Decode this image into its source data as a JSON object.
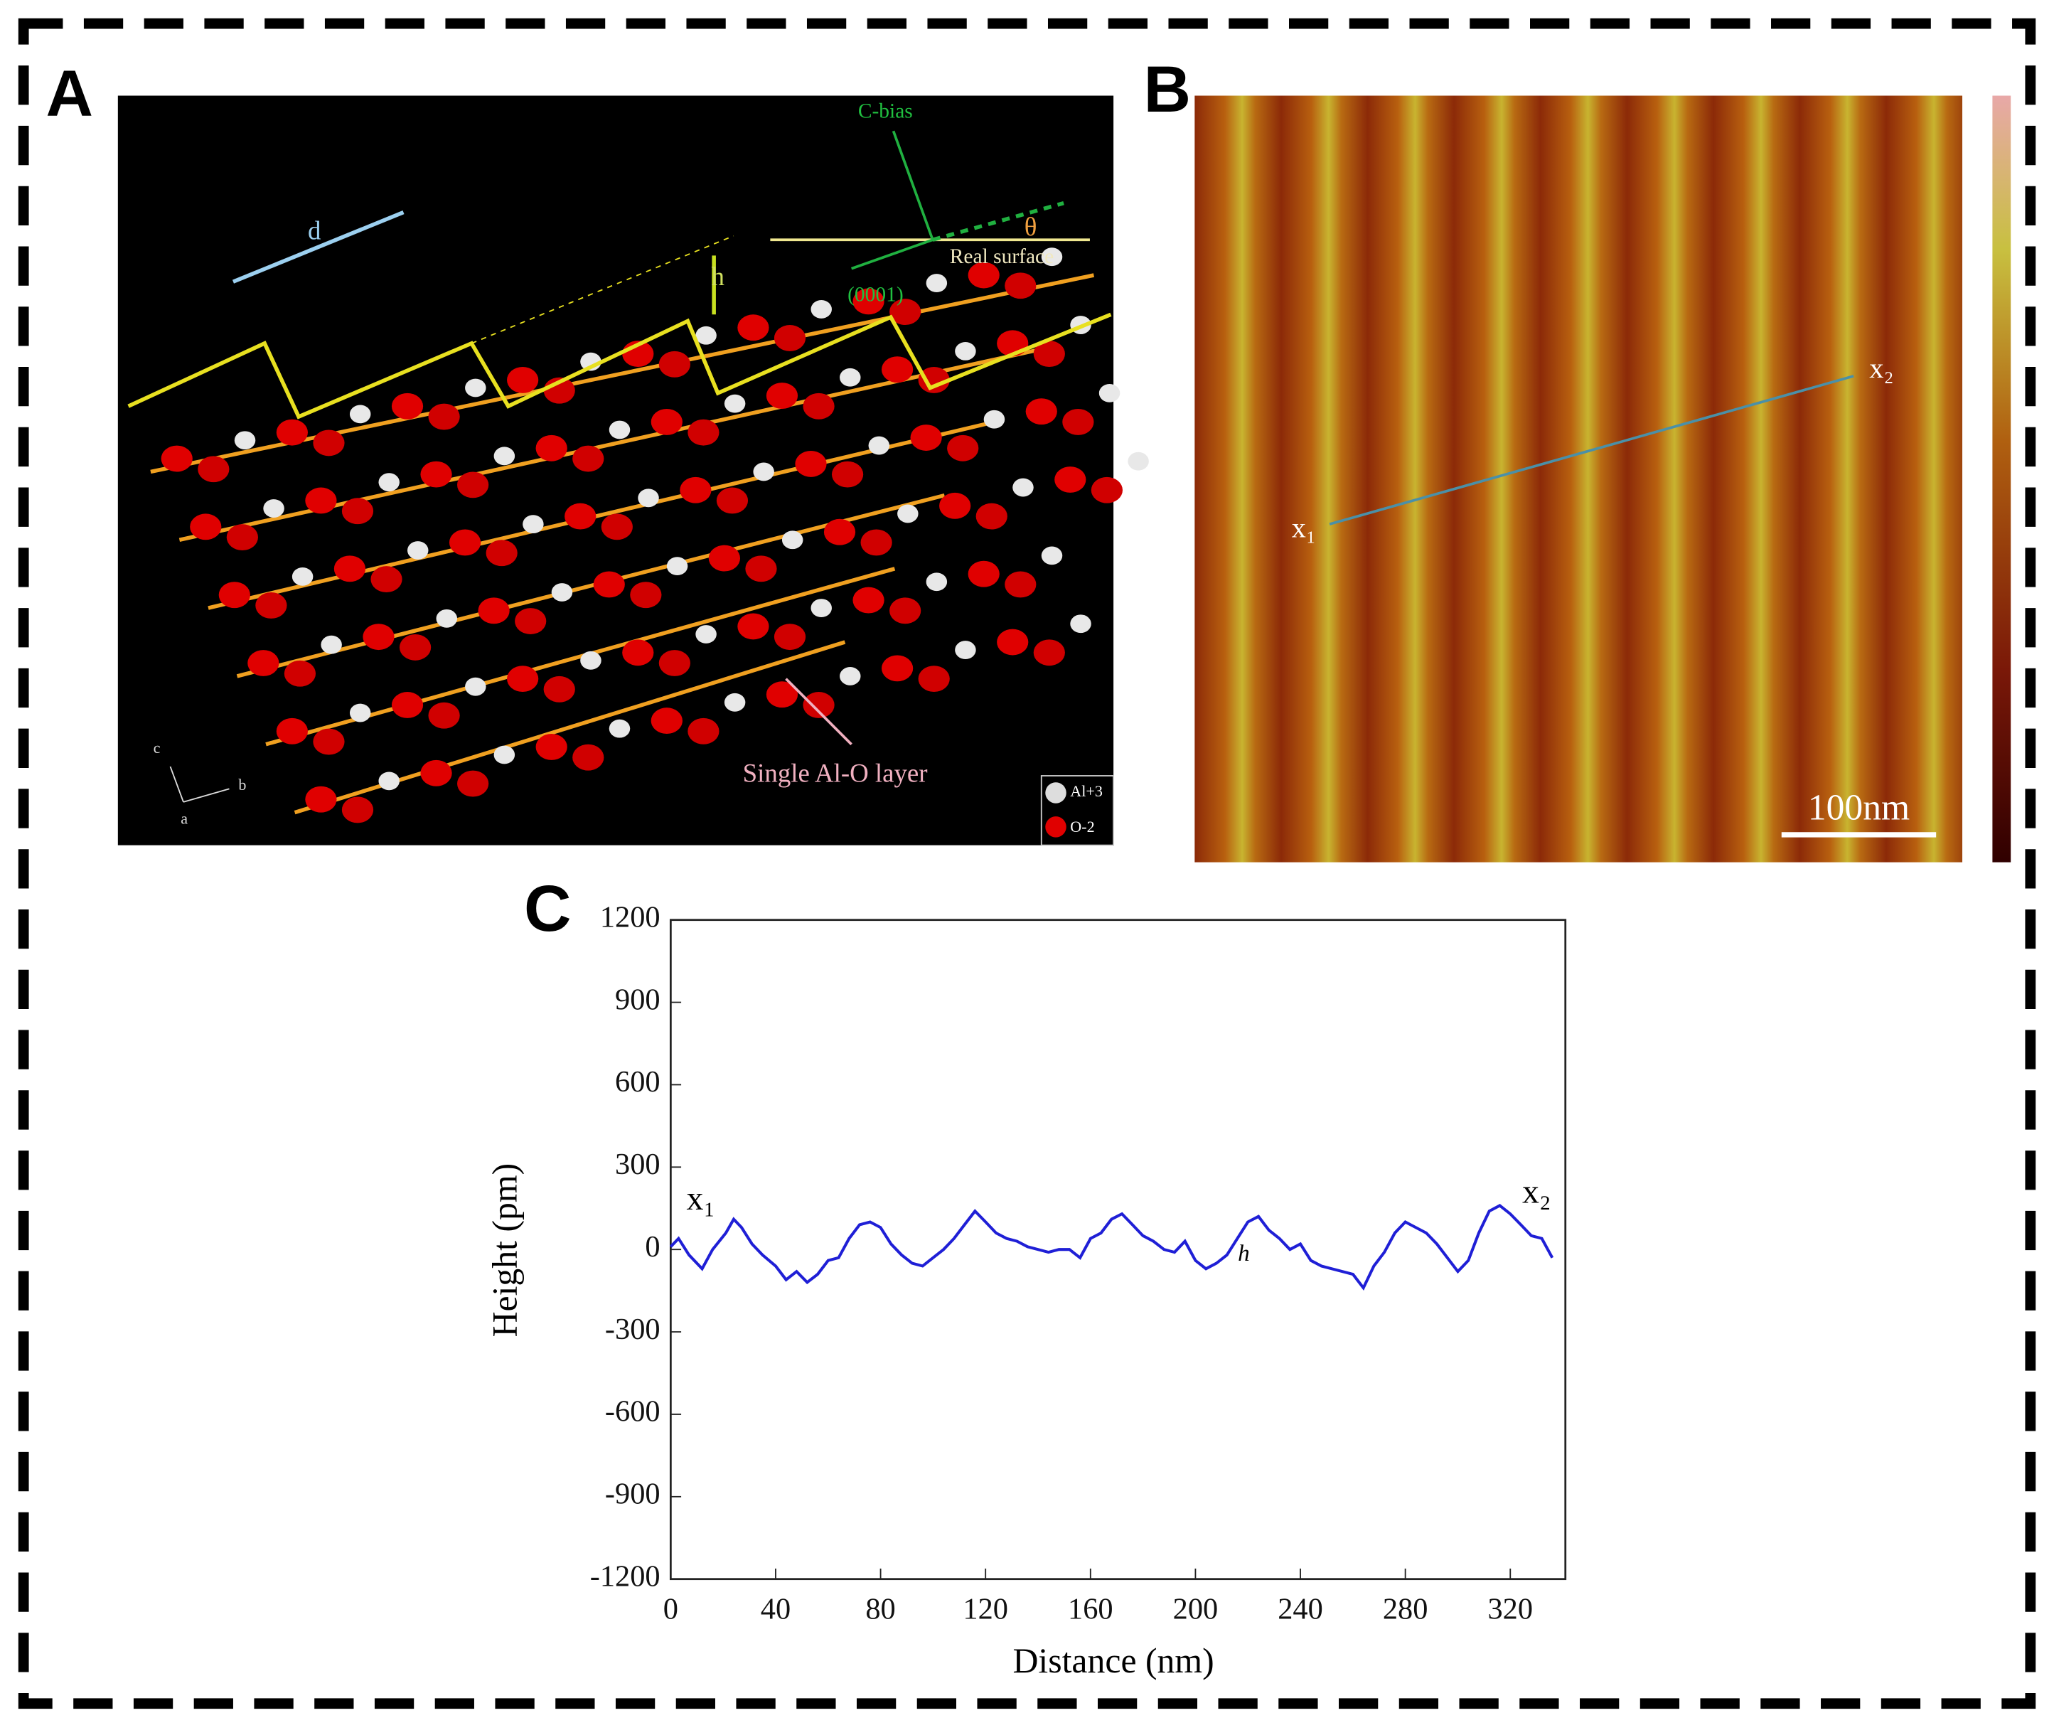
{
  "panel_a": {
    "label": "A",
    "d": "d",
    "h": "h",
    "c_bias": "C-bias",
    "theta": "θ",
    "real_surface": "Real surface",
    "miller": "(0001)",
    "layer_note": "Single Al-O layer",
    "legend": [
      "Al+3",
      "O-2"
    ],
    "axes": [
      "c",
      "b",
      "a"
    ]
  },
  "panel_b": {
    "label": "B",
    "x1": "x₁",
    "x2": "x₂",
    "scale_bar": "100nm"
  },
  "panel_c": {
    "label": "C"
  },
  "chart_data": {
    "type": "line",
    "x_label": "Distance (nm)",
    "y_label": "Height (pm)",
    "x": [
      0,
      3,
      7,
      12,
      16,
      21,
      24,
      27,
      31,
      35,
      40,
      44,
      48,
      52,
      56,
      60,
      64,
      68,
      72,
      76,
      80,
      84,
      88,
      92,
      96,
      100,
      104,
      108,
      112,
      116,
      120,
      124,
      128,
      132,
      136,
      140,
      144,
      148,
      152,
      156,
      160,
      164,
      168,
      172,
      176,
      180,
      184,
      188,
      192,
      196,
      200,
      204,
      208,
      212,
      216,
      220,
      224,
      228,
      232,
      236,
      240,
      244,
      248,
      252,
      256,
      260,
      264,
      268,
      272,
      276,
      280,
      284,
      288,
      292,
      296,
      300,
      304,
      308,
      312,
      316,
      320,
      324,
      328,
      332,
      336
    ],
    "values": [
      10,
      40,
      -20,
      -70,
      0,
      60,
      110,
      80,
      20,
      -20,
      -60,
      -110,
      -80,
      -120,
      -90,
      -40,
      -30,
      40,
      90,
      100,
      80,
      20,
      -20,
      -50,
      -60,
      -30,
      0,
      40,
      90,
      140,
      100,
      60,
      40,
      30,
      10,
      0,
      -10,
      0,
      0,
      -30,
      40,
      60,
      110,
      130,
      90,
      50,
      30,
      0,
      -10,
      30,
      -40,
      -70,
      -50,
      -20,
      40,
      100,
      120,
      70,
      40,
      0,
      20,
      -40,
      -60,
      -70,
      -80,
      -90,
      -140,
      -60,
      -10,
      60,
      100,
      80,
      60,
      20,
      -30,
      -80,
      -40,
      60,
      140,
      160,
      130,
      90,
      50,
      40,
      -30
    ],
    "color": "#1f1fd6",
    "xlim": [
      0,
      341
    ],
    "xticks": [
      0,
      40,
      80,
      120,
      160,
      200,
      240,
      280,
      320
    ],
    "ylim": [
      -1200,
      1200
    ],
    "yticks": [
      -1200,
      -900,
      -600,
      -300,
      0,
      300,
      600,
      900,
      1200
    ],
    "annotations": [
      "x₁",
      "x₂",
      "h"
    ]
  }
}
